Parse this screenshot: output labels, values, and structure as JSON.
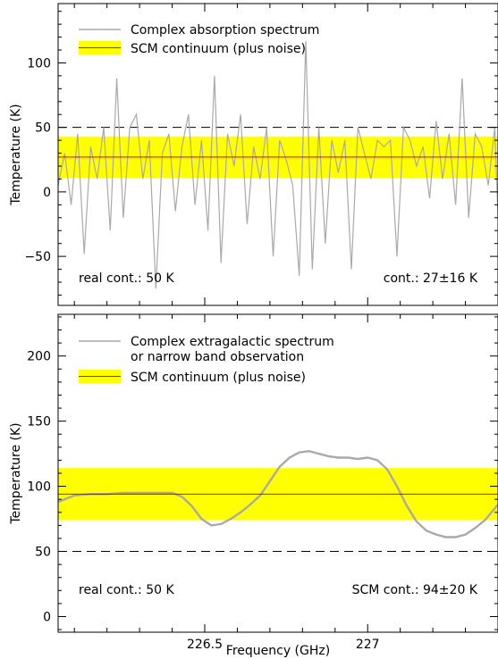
{
  "chart_data": [
    {
      "type": "line",
      "ylabel": "Temperature (K)",
      "xlabel": "",
      "xlim": [
        226.05,
        227.4
      ],
      "ylim": [
        -88,
        146
      ],
      "yticks": [
        -50,
        0,
        50,
        100
      ],
      "xticks": [
        226.5,
        227
      ],
      "xtick_labels": [
        "",
        ""
      ],
      "band": {
        "center": 27,
        "halfwidth": 16
      },
      "dashed_level": 50,
      "colors": {
        "spectrum": "#a9a9a9",
        "band_fill": "#ffff00",
        "band_line": "#ee0000",
        "dashed": "#000000"
      },
      "legend": [
        {
          "label": "Complex absorption spectrum",
          "style": "line"
        },
        {
          "label": "SCM continuum (plus noise)",
          "style": "band"
        }
      ],
      "annotations": {
        "left": "real cont.: 50 K",
        "right": "cont.: 27±16 K"
      },
      "series": {
        "x": [
          226.05,
          226.07,
          226.09,
          226.11,
          226.13,
          226.15,
          226.17,
          226.19,
          226.21,
          226.23,
          226.25,
          226.27,
          226.29,
          226.31,
          226.33,
          226.35,
          226.37,
          226.39,
          226.41,
          226.43,
          226.45,
          226.47,
          226.49,
          226.51,
          226.53,
          226.55,
          226.57,
          226.59,
          226.61,
          226.63,
          226.65,
          226.67,
          226.69,
          226.71,
          226.73,
          226.75,
          226.77,
          226.79,
          226.81,
          226.83,
          226.85,
          226.87,
          226.89,
          226.91,
          226.93,
          226.95,
          226.97,
          226.99,
          227.01,
          227.03,
          227.05,
          227.07,
          227.09,
          227.11,
          227.13,
          227.15,
          227.17,
          227.19,
          227.21,
          227.23,
          227.25,
          227.27,
          227.29,
          227.31,
          227.33,
          227.35,
          227.37,
          227.39,
          227.4
        ],
        "y": [
          5,
          30,
          -10,
          45,
          -48,
          35,
          10,
          50,
          -30,
          88,
          -20,
          50,
          60,
          10,
          40,
          -75,
          30,
          45,
          -15,
          35,
          60,
          -10,
          40,
          -30,
          90,
          -55,
          45,
          20,
          60,
          -25,
          35,
          10,
          50,
          -50,
          40,
          25,
          5,
          -65,
          117,
          -60,
          50,
          -40,
          40,
          15,
          40,
          -60,
          50,
          30,
          10,
          40,
          35,
          40,
          -50,
          50,
          40,
          20,
          35,
          -5,
          55,
          10,
          45,
          -10,
          88,
          -20,
          45,
          35,
          5,
          50,
          -20
        ]
      }
    },
    {
      "type": "line",
      "ylabel": "Temperature (K)",
      "xlabel": "Frequency (GHz)",
      "xlim": [
        226.05,
        227.4
      ],
      "ylim": [
        -12,
        232
      ],
      "yticks": [
        0,
        50,
        100,
        150,
        200
      ],
      "xticks": [
        226.5,
        227
      ],
      "xtick_labels": [
        "226.5",
        "227"
      ],
      "band": {
        "center": 94,
        "halfwidth": 20
      },
      "dashed_level": 50,
      "colors": {
        "spectrum": "#a9a9a9",
        "band_fill": "#ffff00",
        "band_line": "#ee0000",
        "dashed": "#000000"
      },
      "legend": [
        {
          "label": "Complex extragalactic spectrum",
          "label2": "or narrow band observation",
          "style": "line"
        },
        {
          "label": "SCM continuum (plus noise)",
          "style": "band"
        }
      ],
      "annotations": {
        "left": "real cont.: 50 K",
        "right": "SCM cont.: 94±20 K"
      },
      "series": {
        "x": [
          226.05,
          226.1,
          226.15,
          226.2,
          226.25,
          226.3,
          226.35,
          226.4,
          226.43,
          226.46,
          226.49,
          226.52,
          226.55,
          226.58,
          226.61,
          226.64,
          226.67,
          226.7,
          226.73,
          226.76,
          226.79,
          226.82,
          226.85,
          226.88,
          226.91,
          226.94,
          226.97,
          227,
          227.03,
          227.06,
          227.09,
          227.12,
          227.15,
          227.18,
          227.21,
          227.24,
          227.27,
          227.3,
          227.33,
          227.36,
          227.4
        ],
        "y": [
          88,
          93,
          94,
          94,
          95,
          95,
          95,
          95,
          92,
          85,
          75,
          70,
          71,
          75,
          80,
          86,
          93,
          104,
          115,
          122,
          126,
          127,
          125,
          123,
          122,
          122,
          121,
          122,
          120,
          113,
          100,
          85,
          73,
          66,
          63,
          61,
          61,
          63,
          68,
          74,
          86
        ]
      }
    }
  ]
}
